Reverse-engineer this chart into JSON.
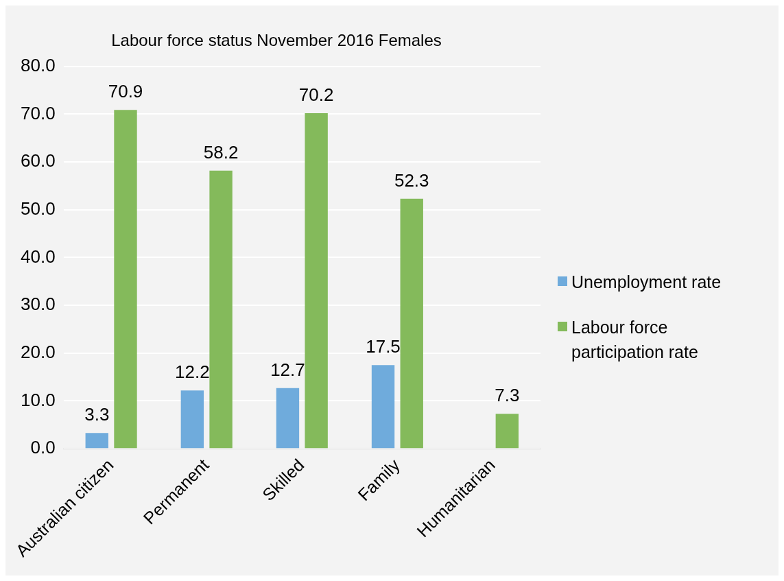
{
  "chart_data": {
    "type": "bar",
    "title": "Labour force status November 2016 Females",
    "categories": [
      "Australian citizen",
      "Permanent",
      "Skilled",
      "Family",
      "Humanitarian"
    ],
    "series": [
      {
        "name": "Unemployment rate",
        "color": "#6fabdc",
        "values": [
          3.3,
          12.2,
          12.7,
          17.5,
          null
        ]
      },
      {
        "name": "Labour force participation rate",
        "color": "#84ba5b",
        "values": [
          70.9,
          58.2,
          70.2,
          52.3,
          7.3
        ]
      }
    ],
    "ylim": [
      0,
      80
    ],
    "yticks": [
      {
        "value": 0,
        "label": "0.0"
      },
      {
        "value": 10,
        "label": "10.0"
      },
      {
        "value": 20,
        "label": "20.0"
      },
      {
        "value": 30,
        "label": "30.0"
      },
      {
        "value": 40,
        "label": "40.0"
      },
      {
        "value": 50,
        "label": "50.0"
      },
      {
        "value": 60,
        "label": "60.0"
      },
      {
        "value": 70,
        "label": "70.0"
      },
      {
        "value": 80,
        "label": "80.0"
      }
    ],
    "grid": "y",
    "legend": "right",
    "data_labels": true
  }
}
